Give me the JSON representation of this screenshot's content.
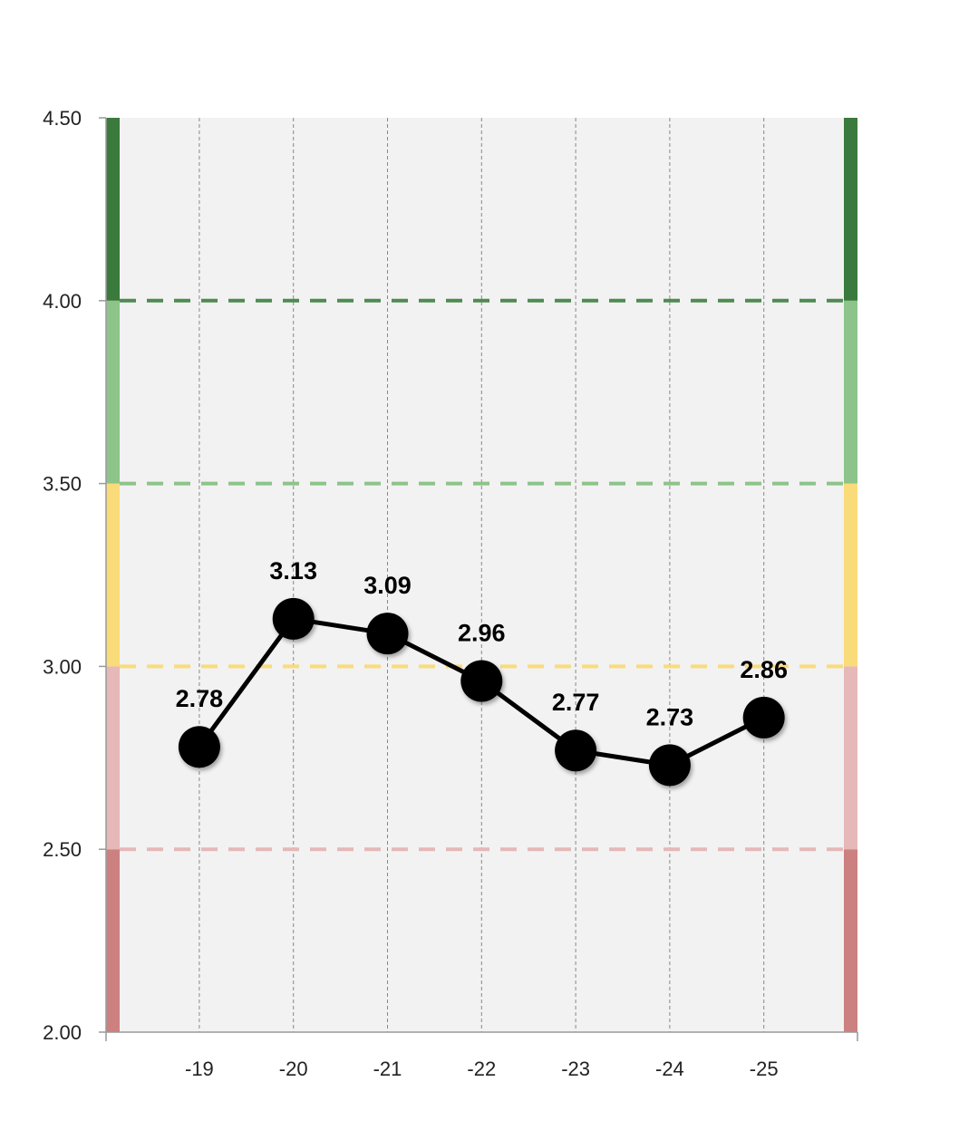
{
  "chart_data": {
    "type": "line",
    "title": "",
    "xlabel": "",
    "ylabel": "",
    "categories": [
      "-19",
      "-20",
      "-21",
      "-22",
      "-23",
      "-24",
      "-25"
    ],
    "series": [
      {
        "values": [
          2.78,
          3.13,
          3.09,
          2.96,
          2.77,
          2.73,
          2.86
        ]
      }
    ],
    "data_labels": [
      "2.78",
      "3.13",
      "3.09",
      "2.96",
      "2.77",
      "2.73",
      "2.86"
    ],
    "ylim": [
      2.0,
      4.5
    ],
    "y_ticks": [
      2.0,
      2.5,
      3.0,
      3.5,
      4.0,
      4.5
    ],
    "y_tick_labels": [
      "2.00",
      "2.50",
      "3.00",
      "3.50",
      "4.00",
      "4.50"
    ],
    "grid": {
      "vertical": true,
      "horizontal": false
    },
    "legend": "none",
    "bands": [
      {
        "from": 2.0,
        "to": 2.5,
        "color": "#cc8080"
      },
      {
        "from": 2.5,
        "to": 3.0,
        "color": "#e6b8b8"
      },
      {
        "from": 3.0,
        "to": 3.5,
        "color": "#fadb7a"
      },
      {
        "from": 3.5,
        "to": 4.0,
        "color": "#8cc48a"
      },
      {
        "from": 4.0,
        "to": 4.5,
        "color": "#3a7a3c"
      }
    ],
    "threshold_lines": [
      {
        "y": 2.5,
        "color": "#e6b8b8"
      },
      {
        "y": 3.0,
        "color": "#fadb7a"
      },
      {
        "y": 3.5,
        "color": "#8cc48a"
      },
      {
        "y": 4.0,
        "color": "#4f8a51"
      }
    ],
    "colors": {
      "plot_background": "#f2f2f2",
      "line": "#000000",
      "marker": "#000000",
      "axis": "#999999",
      "grid": "#888888"
    }
  }
}
